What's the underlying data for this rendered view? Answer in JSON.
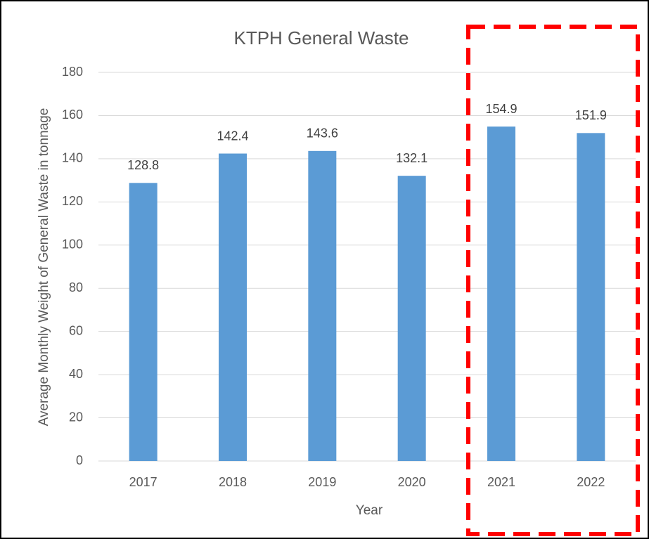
{
  "chart_data": {
    "type": "bar",
    "title": "KTPH General Waste",
    "x_label": "Year",
    "y_label": "Average Monthly Weight of General Waste in tonnage",
    "categories": [
      "2017",
      "2018",
      "2019",
      "2020",
      "2021",
      "2022"
    ],
    "values": [
      128.8,
      142.4,
      143.6,
      132.1,
      154.9,
      151.9
    ],
    "color": "#5b9bd5",
    "ylim": [
      0,
      180
    ],
    "yticks": [
      0,
      20,
      40,
      60,
      80,
      100,
      120,
      140,
      160,
      180
    ],
    "grid": true,
    "data_labels": true
  }
}
